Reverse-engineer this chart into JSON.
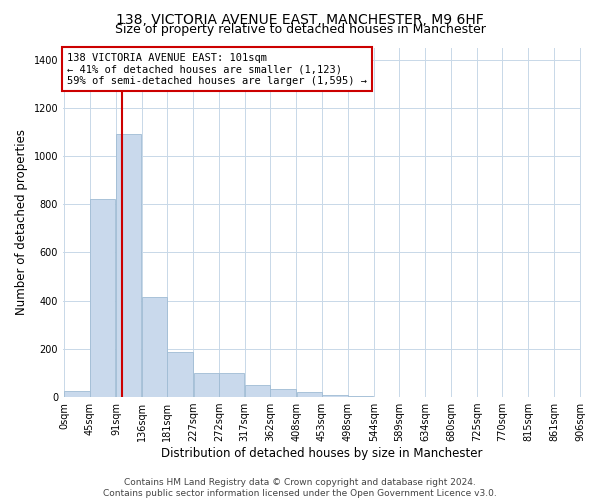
{
  "title": "138, VICTORIA AVENUE EAST, MANCHESTER, M9 6HF",
  "subtitle": "Size of property relative to detached houses in Manchester",
  "xlabel": "Distribution of detached houses by size in Manchester",
  "ylabel": "Number of detached properties",
  "footer_line1": "Contains HM Land Registry data © Crown copyright and database right 2024.",
  "footer_line2": "Contains public sector information licensed under the Open Government Licence v3.0.",
  "bar_color": "#c9d9ec",
  "bar_edge_color": "#a0bcd4",
  "annotation_line_color": "#cc0000",
  "annotation_box_edge": "#cc0000",
  "annotation_text_line1": "138 VICTORIA AVENUE EAST: 101sqm",
  "annotation_text_line2": "← 41% of detached houses are smaller (1,123)",
  "annotation_text_line3": "59% of semi-detached houses are larger (1,595) →",
  "bins": [
    0,
    45,
    91,
    136,
    181,
    227,
    272,
    317,
    362,
    408,
    453,
    498,
    544,
    589,
    634,
    680,
    725,
    770,
    815,
    861,
    906
  ],
  "bar_heights": [
    25,
    820,
    1090,
    415,
    185,
    100,
    100,
    50,
    32,
    22,
    10,
    5,
    0,
    0,
    0,
    0,
    0,
    0,
    0,
    0
  ],
  "property_line_x": 101,
  "ylim": [
    0,
    1450
  ],
  "yticks": [
    0,
    200,
    400,
    600,
    800,
    1000,
    1200,
    1400
  ],
  "background_color": "#ffffff",
  "grid_color": "#c8d8e8",
  "title_fontsize": 10,
  "subtitle_fontsize": 9,
  "axis_label_fontsize": 8.5,
  "tick_fontsize": 7,
  "annotation_fontsize": 7.5,
  "footer_fontsize": 6.5
}
